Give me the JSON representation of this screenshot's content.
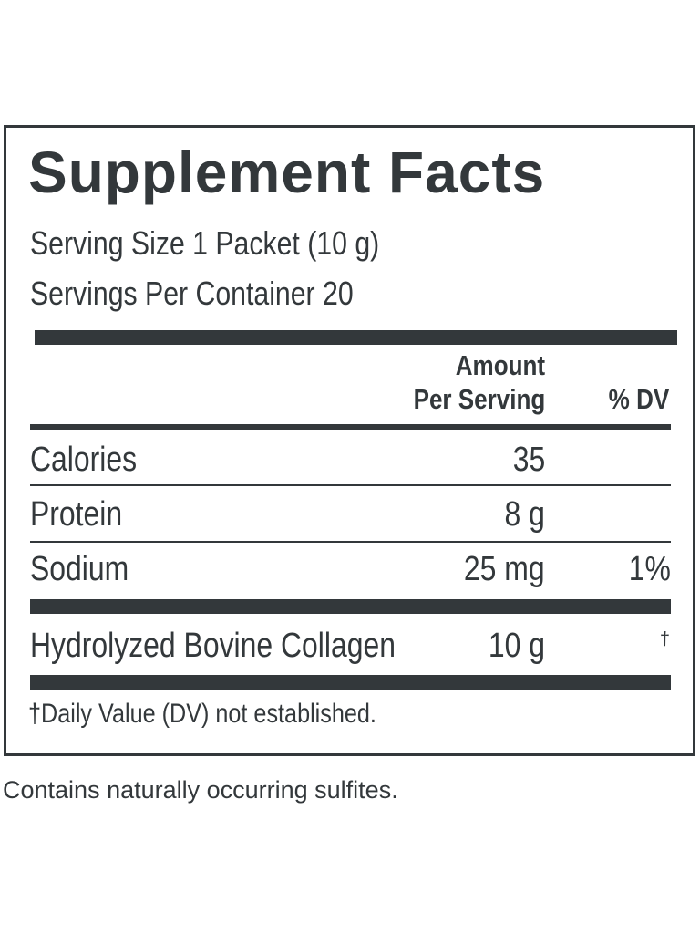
{
  "label": {
    "title": "Supplement Facts",
    "serving_size": "Serving Size 1 Packet (10 g)",
    "servings_per_container": "Servings Per Container 20",
    "header": {
      "amount_line1": "Amount",
      "amount_line2": "Per Serving",
      "dv": "% DV"
    },
    "rows": [
      {
        "name": "Calories",
        "amount": "35",
        "dv": ""
      },
      {
        "name": "Protein",
        "amount": "8 g",
        "dv": ""
      },
      {
        "name": "Sodium",
        "amount": "25 mg",
        "dv": "1%"
      },
      {
        "name": "Hydrolyzed Bovine Collagen",
        "amount": "10 g",
        "dv": "†"
      }
    ],
    "footnote": "†Daily Value (DV) not established."
  },
  "note": "Contains naturally occurring sulfites.",
  "colors": {
    "ink": "#33383b",
    "background": "#ffffff"
  }
}
